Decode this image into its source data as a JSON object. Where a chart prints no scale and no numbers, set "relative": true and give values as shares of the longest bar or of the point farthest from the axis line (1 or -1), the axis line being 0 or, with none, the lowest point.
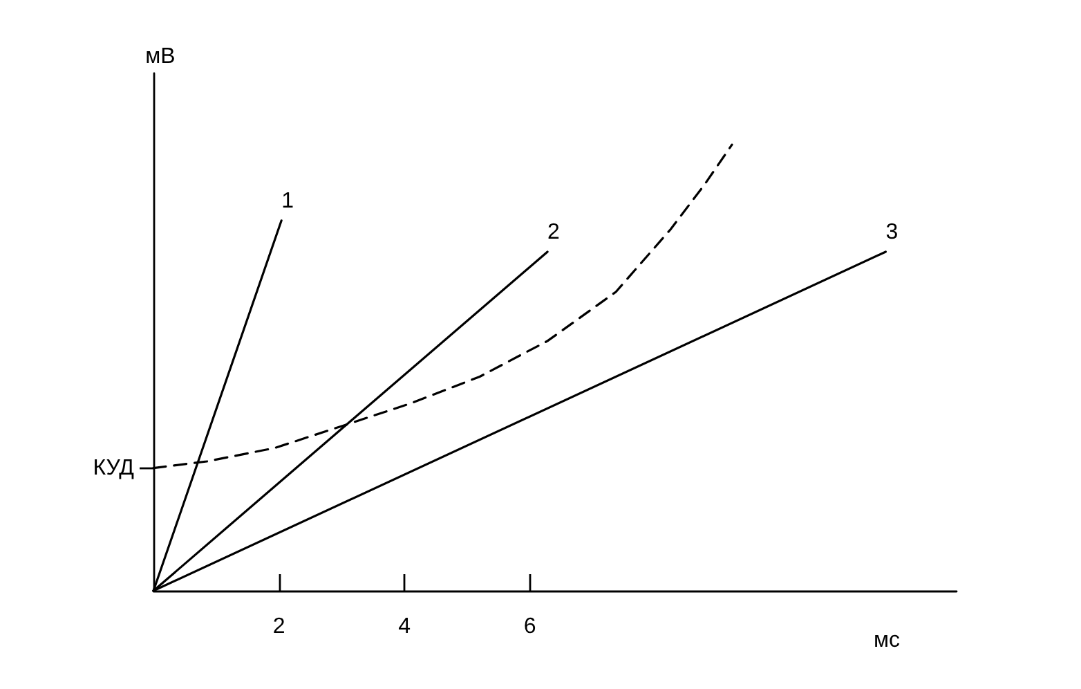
{
  "chart_data": {
    "type": "line",
    "xlabel": "мс",
    "ylabel": "мВ",
    "relative": true,
    "xlim": [
      0,
      12.8
    ],
    "xticks": [
      2,
      4,
      6
    ],
    "series": [
      {
        "name": "1",
        "color": "#000000",
        "x": [
          0,
          2.04
        ],
        "values": [
          0,
          0.83
        ]
      },
      {
        "name": "2",
        "color": "#000000",
        "x": [
          0,
          6.28
        ],
        "values": [
          0,
          0.76
        ]
      },
      {
        "name": "3",
        "color": "#000000",
        "x": [
          0,
          11.67
        ],
        "values": [
          0,
          0.76
        ]
      },
      {
        "color": "#000000",
        "line_style": "dashed",
        "x": [
          0,
          0.85,
          1.93,
          3.02,
          4.1,
          5.2,
          6.28,
          7.37,
          8.24,
          8.78,
          9.22
        ],
        "values": [
          0.275,
          0.29,
          0.32,
          0.37,
          0.42,
          0.48,
          0.56,
          0.67,
          0.81,
          0.91,
          1.0
        ]
      }
    ],
    "ref_lines": [
      {
        "axis": "y",
        "value": 0.275,
        "label": "КУД"
      }
    ],
    "grid": false,
    "legend": false,
    "marker": "none",
    "line_style": "solid"
  }
}
